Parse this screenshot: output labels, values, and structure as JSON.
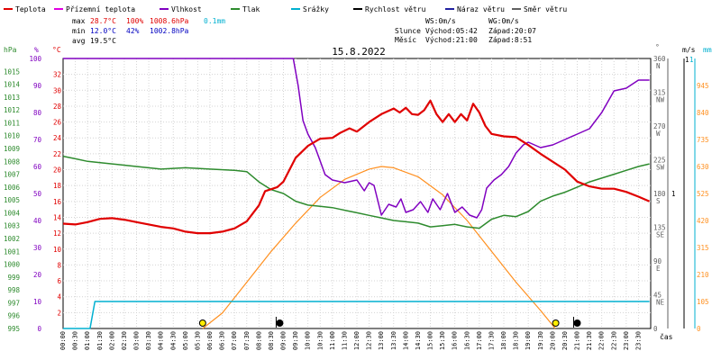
{
  "chart_data": {
    "type": "line",
    "title": "15.8.2022",
    "legend": [
      {
        "label": "Teplota",
        "color": "#e00000"
      },
      {
        "label": "Přízemní teplota",
        "color": "#e000e0"
      },
      {
        "label": "Vlhkost",
        "color": "#8000c0"
      },
      {
        "label": "Tlak",
        "color": "#2e8b2e"
      },
      {
        "label": "Srážky",
        "color": "#00b0d0"
      },
      {
        "label": "Rychlost větru",
        "color": "#000000"
      },
      {
        "label": "Náraz větru",
        "color": "#2020a0"
      },
      {
        "label": "Směr větru",
        "color": "#606060"
      }
    ],
    "stats": {
      "max": {
        "label": "max",
        "temp": "28.7°C",
        "hum": "100%",
        "press": "1008.6hPa",
        "rain": "0.1mm"
      },
      "min": {
        "label": "min",
        "temp": "12.0°C",
        "hum": "42%",
        "press": "1002.8hPa"
      },
      "avg": {
        "label": "avg",
        "temp": "19.5°C"
      }
    },
    "info": {
      "ws": "WS:0m/s",
      "wg": "WG:0m/s",
      "sun_label": "Slunce",
      "sun_rise": "Východ:05:42",
      "sun_set": "Západ:20:07",
      "moon_label": "Měsíc",
      "moon_rise": "Východ:21:00",
      "moon_set": "Západ:8:51"
    },
    "axes": {
      "x_label": "čas",
      "x_ticks": [
        "00:00",
        "00:30",
        "01:00",
        "01:30",
        "02:00",
        "02:30",
        "03:00",
        "03:30",
        "04:00",
        "04:30",
        "05:00",
        "05:30",
        "06:00",
        "06:30",
        "07:00",
        "07:30",
        "08:00",
        "08:30",
        "09:00",
        "09:30",
        "10:00",
        "10:30",
        "11:00",
        "11:30",
        "12:00",
        "12:30",
        "13:00",
        "13:30",
        "14:00",
        "14:30",
        "15:00",
        "15:30",
        "16:00",
        "16:30",
        "17:00",
        "17:30",
        "18:00",
        "18:30",
        "19:00",
        "19:30",
        "20:00",
        "20:30",
        "21:00",
        "21:30",
        "22:00",
        "22:30",
        "23:00",
        "23:30"
      ],
      "hpa": {
        "unit": "hPa",
        "ticks": [
          "1015",
          "1014",
          "1013",
          "1012",
          "1011",
          "1010",
          "1009",
          "1008",
          "1007",
          "1006",
          "1005",
          "1004",
          "1003",
          "1002",
          "1001",
          "1000",
          "999",
          "998",
          "997",
          "996",
          "995"
        ]
      },
      "pct": {
        "unit": "%",
        "ticks": [
          "100",
          "90",
          "80",
          "70",
          "60",
          "50",
          "40",
          "30",
          "20",
          "10",
          "0"
        ]
      },
      "temp": {
        "unit": "°C",
        "ticks": [
          "32",
          "30",
          "28",
          "26",
          "24",
          "22",
          "20",
          "18",
          "16",
          "14",
          "12",
          "10",
          "8",
          "6",
          "4",
          "2"
        ]
      },
      "dir": {
        "unit": "°",
        "ticks": [
          [
            "360",
            "N"
          ],
          [
            "315",
            "NW"
          ],
          [
            "270",
            "W"
          ],
          [
            "225",
            "SW"
          ],
          [
            "180",
            "S"
          ],
          [
            "135",
            "SE"
          ],
          [
            "90",
            "E"
          ],
          [
            "45",
            "NE"
          ],
          [
            "0",
            ""
          ]
        ]
      },
      "wind": {
        "unit": "m/s",
        "ticks": [
          "1",
          "1"
        ]
      },
      "rain": {
        "unit": "mm",
        "ticks": [
          "1"
        ]
      },
      "solar": {
        "ticks": [
          "945",
          "840",
          "735",
          "630",
          "525",
          "420",
          "315",
          "210",
          "105",
          "0"
        ]
      }
    },
    "ranges": {
      "temp": [
        0,
        34
      ],
      "hum": [
        0,
        100
      ],
      "press": [
        995,
        1016
      ],
      "rain": [
        0,
        1
      ],
      "solar": [
        0,
        1050
      ]
    },
    "series": {
      "temperature": {
        "name": "Teplota",
        "color": "#e00000",
        "points": [
          [
            0,
            13.2
          ],
          [
            0.5,
            13.1
          ],
          [
            1,
            13.4
          ],
          [
            1.5,
            13.8
          ],
          [
            2,
            13.9
          ],
          [
            2.5,
            13.7
          ],
          [
            3,
            13.4
          ],
          [
            3.5,
            13.1
          ],
          [
            4,
            12.8
          ],
          [
            4.5,
            12.6
          ],
          [
            5,
            12.2
          ],
          [
            5.5,
            12.0
          ],
          [
            6,
            12.0
          ],
          [
            6.5,
            12.2
          ],
          [
            7,
            12.6
          ],
          [
            7.5,
            13.5
          ],
          [
            8,
            15.5
          ],
          [
            8.25,
            17.3
          ],
          [
            8.75,
            17.8
          ],
          [
            9,
            18.5
          ],
          [
            9.5,
            21.5
          ],
          [
            10,
            23.0
          ],
          [
            10.5,
            23.9
          ],
          [
            11,
            24.0
          ],
          [
            11.3,
            24.6
          ],
          [
            11.7,
            25.2
          ],
          [
            12,
            24.8
          ],
          [
            12.5,
            26.0
          ],
          [
            13,
            27.0
          ],
          [
            13.5,
            27.7
          ],
          [
            13.75,
            27.2
          ],
          [
            14,
            27.8
          ],
          [
            14.25,
            27.0
          ],
          [
            14.5,
            26.9
          ],
          [
            14.75,
            27.5
          ],
          [
            15,
            28.7
          ],
          [
            15.25,
            27.0
          ],
          [
            15.5,
            26.0
          ],
          [
            15.75,
            27.0
          ],
          [
            16,
            26.0
          ],
          [
            16.25,
            27.0
          ],
          [
            16.5,
            26.2
          ],
          [
            16.75,
            28.3
          ],
          [
            17,
            27.2
          ],
          [
            17.25,
            25.5
          ],
          [
            17.5,
            24.5
          ],
          [
            18,
            24.2
          ],
          [
            18.5,
            24.1
          ],
          [
            19,
            23.1
          ],
          [
            19.5,
            22.0
          ],
          [
            20,
            21.0
          ],
          [
            20.5,
            20.0
          ],
          [
            21,
            18.5
          ],
          [
            21.5,
            17.9
          ],
          [
            22,
            17.6
          ],
          [
            22.5,
            17.6
          ],
          [
            23,
            17.2
          ],
          [
            23.5,
            16.6
          ],
          [
            23.95,
            16.0
          ]
        ]
      },
      "humidity": {
        "name": "Vlhkost",
        "color": "#8000c0",
        "points": [
          [
            0,
            100
          ],
          [
            1,
            100
          ],
          [
            3,
            100
          ],
          [
            5,
            100
          ],
          [
            7,
            100
          ],
          [
            9,
            100
          ],
          [
            9.4,
            100
          ],
          [
            9.6,
            90
          ],
          [
            9.8,
            77
          ],
          [
            10,
            72
          ],
          [
            10.3,
            67
          ],
          [
            10.5,
            62
          ],
          [
            10.7,
            57
          ],
          [
            11,
            55
          ],
          [
            11.5,
            54
          ],
          [
            12,
            55
          ],
          [
            12.3,
            51
          ],
          [
            12.5,
            54
          ],
          [
            12.7,
            53
          ],
          [
            13,
            42
          ],
          [
            13.3,
            46
          ],
          [
            13.6,
            45
          ],
          [
            13.8,
            48
          ],
          [
            14,
            43
          ],
          [
            14.3,
            44
          ],
          [
            14.6,
            47
          ],
          [
            14.9,
            43
          ],
          [
            15.1,
            48
          ],
          [
            15.4,
            44
          ],
          [
            15.7,
            50
          ],
          [
            16,
            43
          ],
          [
            16.3,
            45
          ],
          [
            16.6,
            42
          ],
          [
            16.9,
            41
          ],
          [
            17.1,
            44
          ],
          [
            17.3,
            52
          ],
          [
            17.6,
            55
          ],
          [
            17.9,
            57
          ],
          [
            18.2,
            60
          ],
          [
            18.5,
            65
          ],
          [
            18.8,
            68
          ],
          [
            19,
            69
          ],
          [
            19.5,
            67
          ],
          [
            20,
            68
          ],
          [
            20.5,
            70
          ],
          [
            21,
            72
          ],
          [
            21.5,
            74
          ],
          [
            22,
            80
          ],
          [
            22.5,
            88
          ],
          [
            23,
            89
          ],
          [
            23.5,
            92
          ],
          [
            23.95,
            92
          ]
        ]
      },
      "pressure": {
        "name": "Tlak",
        "color": "#2e8b2e",
        "points": [
          [
            0,
            1008.4
          ],
          [
            0.5,
            1008.2
          ],
          [
            1,
            1008.0
          ],
          [
            2,
            1007.8
          ],
          [
            3,
            1007.6
          ],
          [
            4,
            1007.4
          ],
          [
            5,
            1007.5
          ],
          [
            6,
            1007.4
          ],
          [
            7,
            1007.3
          ],
          [
            7.5,
            1007.2
          ],
          [
            8,
            1006.4
          ],
          [
            8.5,
            1005.8
          ],
          [
            9,
            1005.5
          ],
          [
            9.5,
            1004.9
          ],
          [
            10,
            1004.6
          ],
          [
            10.5,
            1004.5
          ],
          [
            11,
            1004.4
          ],
          [
            11.5,
            1004.2
          ],
          [
            12,
            1004.0
          ],
          [
            12.5,
            1003.8
          ],
          [
            13,
            1003.6
          ],
          [
            13.5,
            1003.4
          ],
          [
            14,
            1003.3
          ],
          [
            14.5,
            1003.2
          ],
          [
            15,
            1002.9
          ],
          [
            15.5,
            1003.0
          ],
          [
            16,
            1003.1
          ],
          [
            16.5,
            1002.9
          ],
          [
            17,
            1002.8
          ],
          [
            17.5,
            1003.5
          ],
          [
            18,
            1003.8
          ],
          [
            18.5,
            1003.7
          ],
          [
            19,
            1004.1
          ],
          [
            19.5,
            1004.9
          ],
          [
            20,
            1005.3
          ],
          [
            20.5,
            1005.6
          ],
          [
            21,
            1006.0
          ],
          [
            21.5,
            1006.4
          ],
          [
            22,
            1006.7
          ],
          [
            22.5,
            1007.0
          ],
          [
            23,
            1007.3
          ],
          [
            23.5,
            1007.6
          ],
          [
            23.95,
            1007.8
          ]
        ]
      },
      "precipitation": {
        "name": "Srážky",
        "color": "#00b0d0",
        "points": [
          [
            0,
            0
          ],
          [
            1.1,
            0
          ],
          [
            1.3,
            0.1
          ],
          [
            23.95,
            0.1
          ]
        ]
      },
      "solar": {
        "name": "",
        "color": "#ff9020",
        "points": [
          [
            5.7,
            0
          ],
          [
            6.5,
            60
          ],
          [
            7.5,
            180
          ],
          [
            8.5,
            300
          ],
          [
            9.5,
            410
          ],
          [
            10.5,
            510
          ],
          [
            11.5,
            580
          ],
          [
            12.5,
            620
          ],
          [
            13,
            630
          ],
          [
            13.5,
            625
          ],
          [
            14.5,
            590
          ],
          [
            15.5,
            520
          ],
          [
            16.5,
            420
          ],
          [
            17.5,
            300
          ],
          [
            18.5,
            180
          ],
          [
            19.5,
            70
          ],
          [
            20.1,
            0
          ]
        ]
      }
    },
    "markers": [
      {
        "type": "sun",
        "label": "sunrise",
        "hour": 5.7
      },
      {
        "type": "sun",
        "label": "sunset",
        "hour": 20.12
      },
      {
        "type": "moon",
        "label": "moonset",
        "hour": 8.85
      },
      {
        "type": "moon",
        "label": "moonrise",
        "hour": 21.0
      }
    ]
  }
}
